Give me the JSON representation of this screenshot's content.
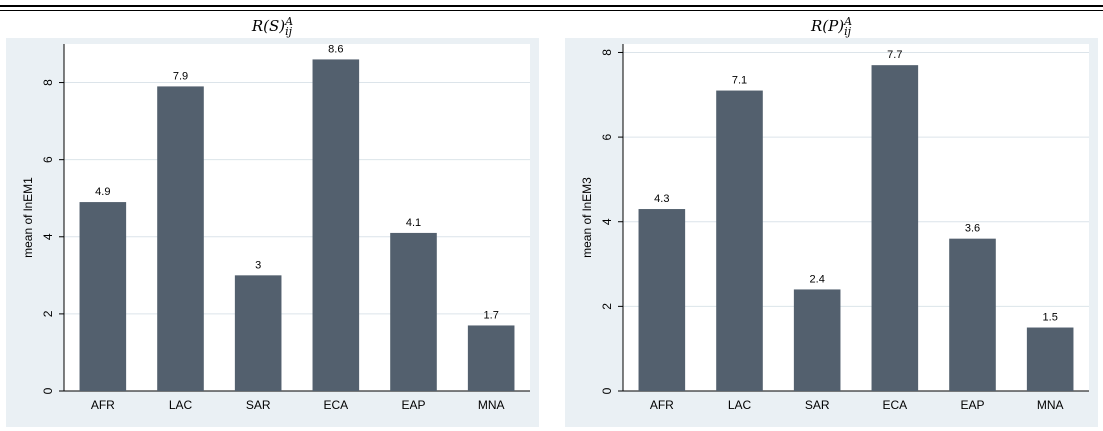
{
  "header": {
    "title": ""
  },
  "chart_data": [
    {
      "type": "bar",
      "title": "R(S)_ij^A",
      "title_parts": {
        "base": "R(S)",
        "sub": "ij",
        "sup": "A"
      },
      "xlabel": "",
      "ylabel": "mean of lnEM1",
      "categories": [
        "AFR",
        "LAC",
        "SAR",
        "ECA",
        "EAP",
        "MNA"
      ],
      "values": [
        4.9,
        7.9,
        3.0,
        8.6,
        4.1,
        1.7
      ],
      "value_labels": [
        "4.9",
        "7.9",
        "3",
        "8.6",
        "4.1",
        "1.7"
      ],
      "ylim": [
        0,
        9.0
      ],
      "yticks": [
        0,
        2,
        4,
        6,
        8
      ],
      "grid": true,
      "legend": "none",
      "colors": {
        "bar": "#53606e",
        "plot_bg": "#ffffff",
        "outer_bg": "#eaf0f4",
        "grid": "#dce4ea"
      }
    },
    {
      "type": "bar",
      "title": "R(P)_ij^A",
      "title_parts": {
        "base": "R(P)",
        "sub": "ij",
        "sup": "A"
      },
      "xlabel": "",
      "ylabel": "mean of lnEM3",
      "categories": [
        "AFR",
        "LAC",
        "SAR",
        "ECA",
        "EAP",
        "MNA"
      ],
      "values": [
        4.3,
        7.1,
        2.4,
        7.7,
        3.6,
        1.5
      ],
      "value_labels": [
        "4.3",
        "7.1",
        "2.4",
        "7.7",
        "3.6",
        "1.5"
      ],
      "ylim": [
        0,
        8.2
      ],
      "yticks": [
        0,
        2,
        4,
        6,
        8
      ],
      "grid": true,
      "legend": "none",
      "colors": {
        "bar": "#53606e",
        "plot_bg": "#ffffff",
        "outer_bg": "#eaf0f4",
        "grid": "#dce4ea"
      }
    }
  ]
}
